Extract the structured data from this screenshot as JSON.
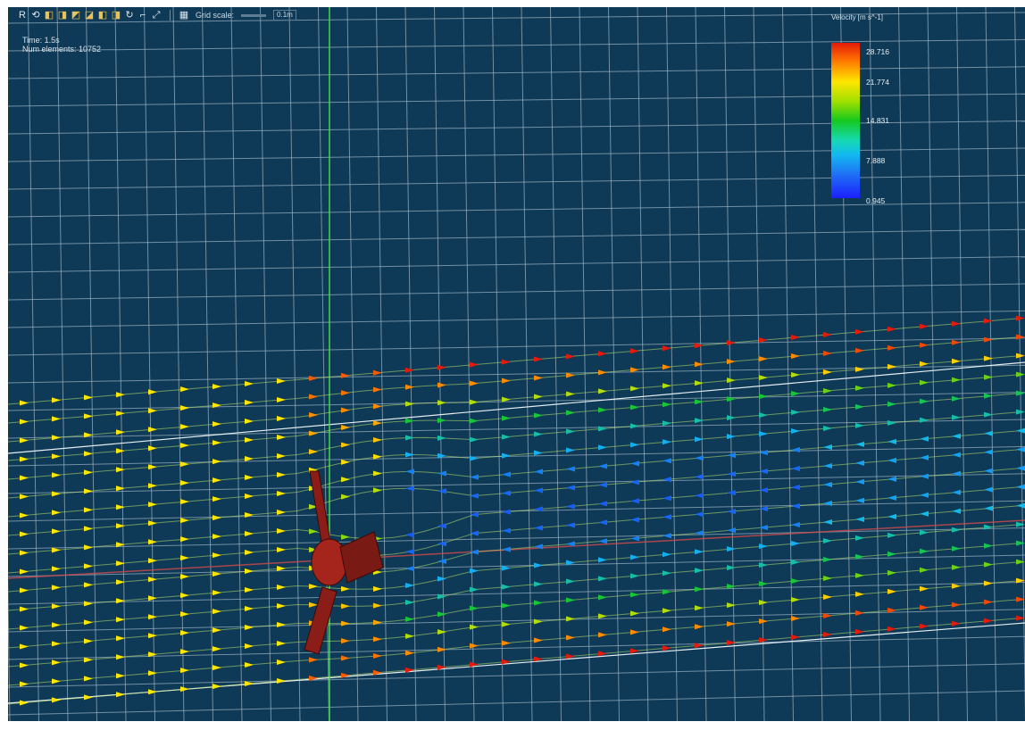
{
  "toolbar": {
    "buttons": [
      "R",
      "rotate-view-icon",
      "cube-view-front-icon",
      "cube-view-back-icon",
      "cube-view-left-icon",
      "cube-view-right-icon",
      "cube-view-top-icon",
      "cube-view-bottom-icon",
      "refresh-icon",
      "measure-icon",
      "expand-icon",
      "grid-icon"
    ],
    "grid_scale_label": "Grid scale:",
    "grid_scale_value": "0.1m"
  },
  "info": {
    "time": "Time: 1.5s",
    "num_elements": "Num elements: 10752"
  },
  "legend": {
    "title": "Velocity [m s^-1]",
    "ticks": [
      "28.716",
      "21.774",
      "14.831",
      "7.888",
      "0.945"
    ]
  },
  "colors": {
    "background": "#0e3a57",
    "grid": "#9fb3c2",
    "axis_y": "#43d84a",
    "axis_x": "#d24a4a",
    "turbine": "#8a1d17"
  }
}
